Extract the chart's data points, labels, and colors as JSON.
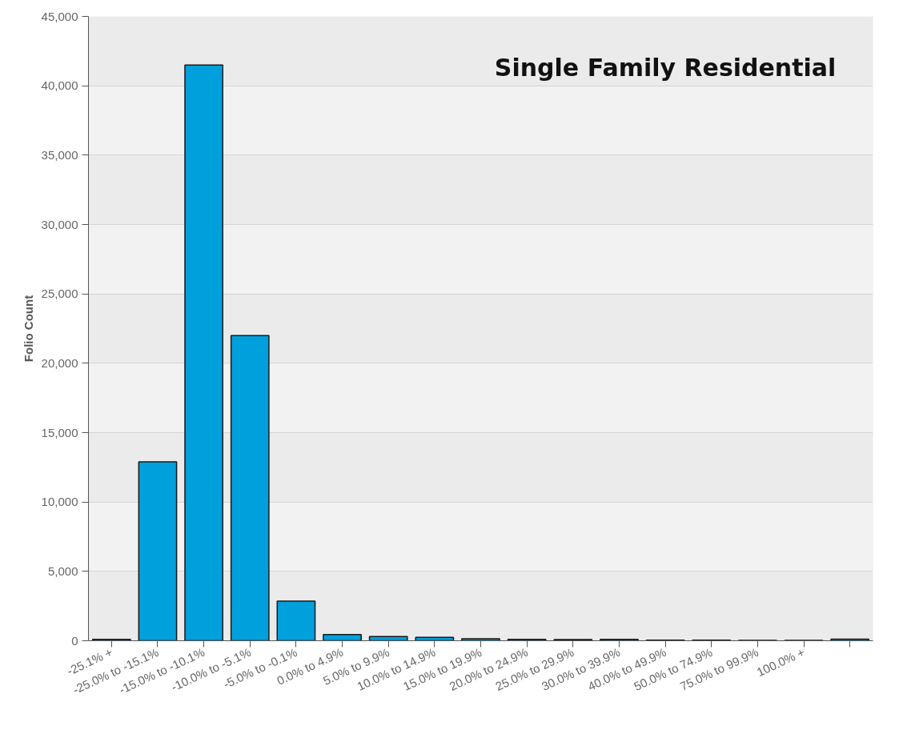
{
  "chart_data": {
    "type": "bar",
    "title": "Single Family Residential",
    "ylabel": "Folio Count",
    "categories": [
      "-25.1% +",
      "-25.0% to -15.1%",
      "-15.0% to -10.1%",
      "-10.0% to -5.1%",
      "-5.0% to -0.1%",
      "0.0% to 4.9%",
      "5.0% to 9.9%",
      "10.0% to 14.9%",
      "15.0% to 19.9%",
      "20.0% to 24.9%",
      "25.0% to 29.9%",
      "30.0% to 39.9%",
      "40.0% to 49.9%",
      "50.0% to 74.9%",
      "75.0% to 99.9%",
      "100.0% +",
      null
    ],
    "values": [
      100,
      12900,
      41500,
      22000,
      2850,
      450,
      300,
      250,
      150,
      100,
      80,
      100,
      50,
      50,
      30,
      30,
      120
    ],
    "color": "#00a0dc",
    "ylim": [
      0,
      45000
    ],
    "yticks": [
      {
        "value": 0,
        "label": "0"
      },
      {
        "value": 5000,
        "label": "5,000"
      },
      {
        "value": 10000,
        "label": "10,000"
      },
      {
        "value": 15000,
        "label": "15,000"
      },
      {
        "value": 20000,
        "label": "20,000"
      },
      {
        "value": 25000,
        "label": "25,000"
      },
      {
        "value": 30000,
        "label": "30,000"
      },
      {
        "value": 35000,
        "label": "35,000"
      },
      {
        "value": 40000,
        "label": "40,000"
      },
      {
        "value": 45000,
        "label": "45,000"
      }
    ],
    "grid": "y"
  }
}
